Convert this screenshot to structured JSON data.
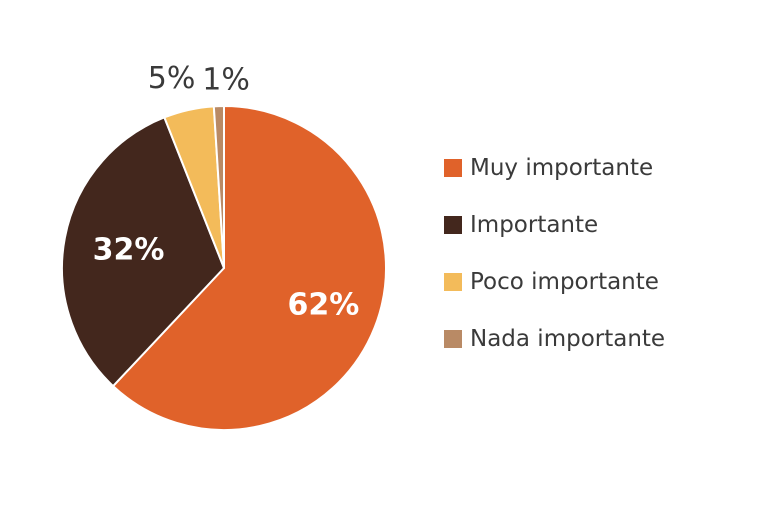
{
  "chart_data": {
    "type": "pie",
    "title": "",
    "categories": [
      "Muy importante",
      "Importante",
      "Poco importante",
      "Nada importante"
    ],
    "values": [
      62,
      32,
      5,
      1
    ],
    "data_labels": [
      "62%",
      "32%",
      "5%",
      "1%"
    ],
    "colors": [
      "#e0622a",
      "#43271d",
      "#f3bb5a",
      "#b98a65"
    ],
    "legend_position": "right"
  }
}
